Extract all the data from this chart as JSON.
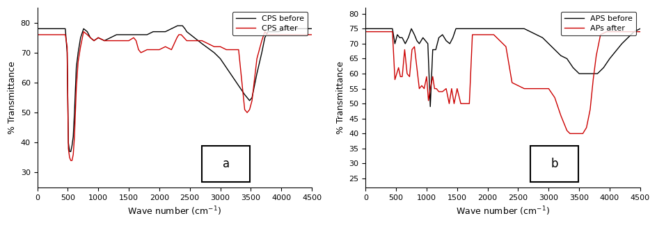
{
  "panel_a": {
    "title": "a",
    "xlabel": "Wave number (cm-1)",
    "ylabel": "% Transmittance",
    "xlim": [
      0,
      4500
    ],
    "ylim": [
      25,
      85
    ],
    "yticks": [
      30,
      40,
      50,
      60,
      70,
      80
    ],
    "legend": [
      "CPS before",
      "CPS after"
    ],
    "before_color": "#000000",
    "after_color": "#cc0000",
    "before_x": [
      0,
      200,
      350,
      420,
      460,
      490,
      510,
      530,
      550,
      570,
      590,
      610,
      640,
      670,
      710,
      760,
      820,
      870,
      930,
      1000,
      1100,
      1200,
      1300,
      1400,
      1500,
      1600,
      1700,
      1800,
      1900,
      2000,
      2100,
      2200,
      2300,
      2380,
      2420,
      2450,
      2700,
      2900,
      3000,
      3100,
      3200,
      3300,
      3400,
      3440,
      3480,
      3520,
      3600,
      3680,
      3730,
      3780,
      3850,
      3950,
      4100,
      4300,
      4500
    ],
    "before_y": [
      78,
      78,
      78,
      78,
      78,
      70,
      40,
      37,
      37,
      39,
      42,
      50,
      65,
      70,
      75,
      78,
      77,
      75,
      74,
      75,
      74,
      75,
      76,
      76,
      76,
      76,
      76,
      76,
      77,
      77,
      77,
      78,
      79,
      79,
      78,
      77,
      73,
      70,
      68,
      65,
      62,
      59,
      56,
      55,
      54,
      55,
      63,
      70,
      75,
      77,
      77,
      77,
      78,
      78,
      78
    ],
    "after_x": [
      0,
      200,
      350,
      420,
      460,
      490,
      510,
      530,
      550,
      570,
      590,
      610,
      640,
      670,
      710,
      760,
      820,
      870,
      930,
      1000,
      1100,
      1200,
      1300,
      1400,
      1500,
      1580,
      1620,
      1660,
      1700,
      1800,
      1900,
      2000,
      2100,
      2200,
      2290,
      2320,
      2340,
      2360,
      2450,
      2700,
      2900,
      3000,
      3100,
      3200,
      3300,
      3400,
      3440,
      3480,
      3520,
      3600,
      3680,
      3730,
      3780,
      3850,
      3950,
      4100,
      4300,
      4500
    ],
    "after_y": [
      76,
      76,
      76,
      76,
      76,
      72,
      38,
      35,
      34,
      34,
      36,
      42,
      58,
      67,
      72,
      77,
      76,
      75,
      74,
      75,
      74,
      74,
      74,
      74,
      74,
      75,
      74,
      71,
      70,
      71,
      71,
      71,
      72,
      71,
      75,
      76,
      76,
      76,
      74,
      74,
      72,
      72,
      71,
      71,
      71,
      51,
      50,
      51,
      54,
      68,
      74,
      77,
      76,
      76,
      76,
      76,
      76,
      76
    ]
  },
  "panel_b": {
    "title": "b",
    "xlabel": "Wave number (cm-1)",
    "ylabel": "% Transmittance",
    "xlim": [
      0,
      4500
    ],
    "ylim": [
      22,
      82
    ],
    "yticks": [
      25,
      30,
      35,
      40,
      45,
      50,
      55,
      60,
      65,
      70,
      75,
      80
    ],
    "legend": [
      "APS before",
      "APs after"
    ],
    "before_color": "#000000",
    "after_color": "#cc0000",
    "before_x": [
      0,
      200,
      380,
      440,
      480,
      520,
      560,
      600,
      650,
      700,
      750,
      800,
      840,
      880,
      940,
      980,
      1020,
      1060,
      1100,
      1150,
      1200,
      1260,
      1320,
      1380,
      1430,
      1480,
      1550,
      1620,
      1700,
      1800,
      1900,
      2000,
      2200,
      2400,
      2600,
      2800,
      2900,
      3000,
      3100,
      3200,
      3300,
      3400,
      3500,
      3600,
      3700,
      3750,
      3800,
      3900,
      4000,
      4200,
      4400,
      4500
    ],
    "before_y": [
      75,
      75,
      75,
      75,
      70,
      73,
      72,
      72,
      70,
      72,
      75,
      73,
      71,
      70,
      72,
      71,
      70,
      49,
      68,
      68,
      72,
      73,
      71,
      70,
      72,
      75,
      75,
      75,
      75,
      75,
      75,
      75,
      75,
      75,
      75,
      73,
      72,
      70,
      68,
      66,
      65,
      62,
      60,
      60,
      60,
      60,
      60,
      62,
      65,
      70,
      74,
      75
    ],
    "after_x": [
      0,
      200,
      380,
      440,
      480,
      510,
      540,
      570,
      600,
      640,
      680,
      720,
      760,
      800,
      840,
      880,
      920,
      960,
      1000,
      1030,
      1060,
      1100,
      1130,
      1160,
      1200,
      1260,
      1320,
      1370,
      1410,
      1450,
      1500,
      1560,
      1600,
      1640,
      1660,
      1680,
      1700,
      1750,
      1800,
      1900,
      2000,
      2100,
      2300,
      2400,
      2600,
      2800,
      2900,
      3000,
      3100,
      3200,
      3300,
      3350,
      3400,
      3450,
      3500,
      3560,
      3620,
      3680,
      3730,
      3780,
      3850,
      3950,
      4100,
      4300,
      4500
    ],
    "after_y": [
      74,
      74,
      74,
      74,
      58,
      60,
      62,
      59,
      59,
      68,
      60,
      59,
      68,
      69,
      62,
      55,
      56,
      55,
      59,
      51,
      55,
      59,
      55,
      55,
      54,
      54,
      55,
      50,
      55,
      50,
      55,
      50,
      50,
      50,
      50,
      50,
      50,
      73,
      73,
      73,
      73,
      73,
      69,
      57,
      55,
      55,
      55,
      55,
      52,
      46,
      41,
      40,
      40,
      40,
      40,
      40,
      42,
      48,
      58,
      66,
      73,
      74,
      74,
      74,
      74
    ]
  }
}
